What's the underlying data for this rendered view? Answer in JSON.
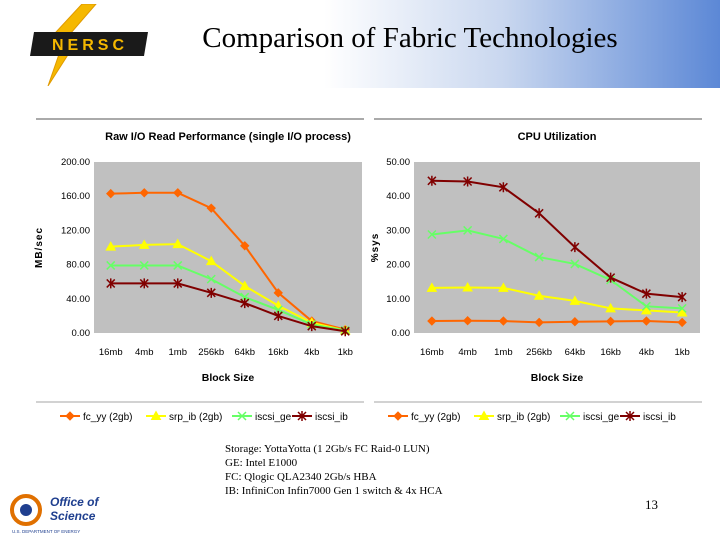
{
  "header": {
    "title": "Comparison of Fabric Technologies",
    "logo_text": "NERSC"
  },
  "footer": {
    "office_logo_line1": "Office of",
    "office_logo_line2": "Science",
    "office_logo_line3": "U.S. DEPARTMENT OF ENERGY",
    "page_number": "13"
  },
  "caption": {
    "lines": [
      "Storage: YottaYotta (1 2Gb/s FC Raid-0 LUN)",
      "GE: Intel E1000",
      "FC: Qlogic QLA2340 2Gb/s HBA",
      "IB: InfiniCon Infin7000 Gen 1 switch & 4x HCA"
    ]
  },
  "colors": {
    "plot_bg": "#c0c0c0",
    "fc_yy": "#ff6600",
    "srp_ib": "#ffff00",
    "iscsi_ge": "#66ff66",
    "iscsi_ib": "#800000"
  },
  "chart_data": [
    {
      "type": "line",
      "title": "Raw I/O Read Performance (single I/O process)",
      "xlabel": "Block Size",
      "ylabel": "MB/sec",
      "categories": [
        "16mb",
        "4mb",
        "1mb",
        "256kb",
        "64kb",
        "16kb",
        "4kb",
        "1kb"
      ],
      "ylim": [
        0,
        200
      ],
      "yticks": [
        "0.00",
        "40.00",
        "80.00",
        "120.00",
        "160.00",
        "200.00"
      ],
      "grid": false,
      "legend_position": "bottom",
      "series": [
        {
          "name": "fc_yy (2gb)",
          "marker": "diamond",
          "values": [
            163,
            164,
            164,
            146,
            102,
            47,
            14,
            4
          ]
        },
        {
          "name": "srp_ib (2gb)",
          "marker": "triangle",
          "values": [
            101,
            103,
            104,
            84,
            55,
            32,
            12,
            3
          ]
        },
        {
          "name": "iscsi_ge",
          "marker": "x",
          "values": [
            79,
            79,
            79,
            63,
            42,
            27,
            10,
            3
          ]
        },
        {
          "name": "iscsi_ib",
          "marker": "star",
          "values": [
            58,
            58,
            58,
            47,
            35,
            20,
            8,
            2
          ]
        }
      ]
    },
    {
      "type": "line",
      "title": "CPU Utilization",
      "xlabel": "Block Size",
      "ylabel": "%sys",
      "categories": [
        "16mb",
        "4mb",
        "1mb",
        "256kb",
        "64kb",
        "16kb",
        "4kb",
        "1kb"
      ],
      "ylim": [
        0,
        50
      ],
      "yticks": [
        "0.00",
        "10.00",
        "20.00",
        "30.00",
        "40.00",
        "50.00"
      ],
      "grid": false,
      "legend_position": "bottom",
      "series": [
        {
          "name": "fc_yy (2gb)",
          "marker": "diamond",
          "values": [
            3.5,
            3.6,
            3.5,
            3.1,
            3.3,
            3.4,
            3.5,
            3.1
          ]
        },
        {
          "name": "srp_ib (2gb)",
          "marker": "triangle",
          "values": [
            13.2,
            13.3,
            13.2,
            10.9,
            9.4,
            7.2,
            6.6,
            6.0
          ]
        },
        {
          "name": "iscsi_ge",
          "marker": "x",
          "values": [
            28.8,
            30.0,
            27.5,
            22.2,
            20.2,
            15.5,
            7.8,
            7.2
          ]
        },
        {
          "name": "iscsi_ib",
          "marker": "star",
          "values": [
            44.5,
            44.3,
            42.6,
            35.0,
            25.1,
            16.2,
            11.5,
            10.5
          ]
        }
      ]
    }
  ]
}
